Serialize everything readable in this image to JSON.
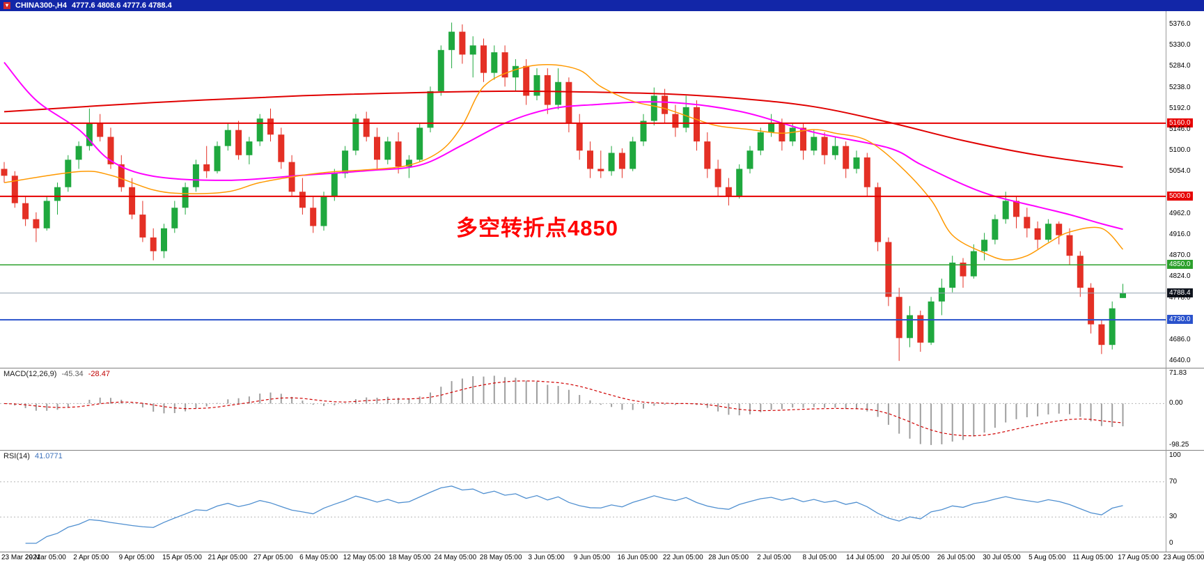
{
  "window": {
    "title_symbol": "CHINA300-,H4",
    "title_ohlc": "4777.6 4808.6 4777.6 4788.4",
    "titlebar_color": "#1226a8"
  },
  "colors": {
    "background": "#ffffff",
    "up": "#1fa83e",
    "down": "#e43025",
    "ma_slow": "#e00000",
    "ma_mid": "#ff00ff",
    "ma_fast": "#ff9900",
    "macd_hist": "#9e9e9e",
    "macd_signal": "#d00000",
    "rsi_line": "#4f8fd0",
    "level_dotted": "#b5b5b5",
    "current_line": "#90a0b0",
    "current_badge": "#10151f",
    "annotation": "#ff0000",
    "separator": "#808080"
  },
  "chart_data": [
    {
      "type": "candlestick",
      "symbol": "CHINA300-",
      "period": "H4",
      "title": "CHINA300-,H4",
      "current_ohlc": {
        "open": 4777.6,
        "high": 4808.6,
        "low": 4777.6,
        "close": 4788.4
      },
      "ylim": [
        4625,
        5405
      ],
      "y_ticks": [
        "5376.0",
        "5330.0",
        "5284.0",
        "5238.0",
        "5192.0",
        "5146.0",
        "5100.0",
        "5054.0",
        "4962.0",
        "4916.0",
        "4870.0",
        "4824.0",
        "4778.0",
        "4686.0",
        "4640.0"
      ],
      "x_labels": [
        "23 Mar 2021",
        "29 Mar 05:00",
        "2 Apr 05:00",
        "9 Apr 05:00",
        "15 Apr 05:00",
        "21 Apr 05:00",
        "27 Apr 05:00",
        "6 May 05:00",
        "12 May 05:00",
        "18 May 05:00",
        "24 May 05:00",
        "28 May 05:00",
        "3 Jun 05:00",
        "9 Jun 05:00",
        "16 Jun 05:00",
        "22 Jun 05:00",
        "28 Jun 05:00",
        "2 Jul 05:00",
        "8 Jul 05:00",
        "14 Jul 05:00",
        "20 Jul 05:00",
        "26 Jul 05:00",
        "30 Jul 05:00",
        "5 Aug 05:00",
        "11 Aug 05:00",
        "17 Aug 05:00",
        "23 Aug 05:00"
      ],
      "candles": [
        [
          5060,
          5075,
          5030,
          5045
        ],
        [
          5045,
          5055,
          4975,
          4985
        ],
        [
          4985,
          5000,
          4935,
          4950
        ],
        [
          4950,
          4965,
          4900,
          4930
        ],
        [
          4930,
          5000,
          4925,
          4990
        ],
        [
          4990,
          5030,
          4960,
          5020
        ],
        [
          5020,
          5090,
          5010,
          5080
        ],
        [
          5080,
          5120,
          5060,
          5110
        ],
        [
          5110,
          5192,
          5100,
          5160
        ],
        [
          5160,
          5180,
          5120,
          5130
        ],
        [
          5130,
          5150,
          5060,
          5070
        ],
        [
          5070,
          5090,
          5010,
          5020
        ],
        [
          5020,
          5040,
          4950,
          4960
        ],
        [
          4960,
          4990,
          4900,
          4910
        ],
        [
          4910,
          4930,
          4860,
          4880
        ],
        [
          4880,
          4940,
          4865,
          4930
        ],
        [
          4930,
          4990,
          4920,
          4975
        ],
        [
          4975,
          5030,
          4960,
          5020
        ],
        [
          5020,
          5080,
          5010,
          5070
        ],
        [
          5070,
          5110,
          5040,
          5055
        ],
        [
          5055,
          5120,
          5050,
          5110
        ],
        [
          5110,
          5160,
          5100,
          5145
        ],
        [
          5145,
          5165,
          5080,
          5090
        ],
        [
          5090,
          5130,
          5070,
          5120
        ],
        [
          5120,
          5180,
          5110,
          5170
        ],
        [
          5170,
          5192,
          5120,
          5135
        ],
        [
          5135,
          5150,
          5060,
          5075
        ],
        [
          5075,
          5090,
          5000,
          5010
        ],
        [
          5010,
          5040,
          4960,
          4975
        ],
        [
          4975,
          5000,
          4920,
          4935
        ],
        [
          4935,
          5010,
          4925,
          5000
        ],
        [
          5000,
          5060,
          4990,
          5050
        ],
        [
          5050,
          5110,
          5040,
          5100
        ],
        [
          5100,
          5180,
          5090,
          5170
        ],
        [
          5170,
          5185,
          5120,
          5130
        ],
        [
          5130,
          5150,
          5060,
          5080
        ],
        [
          5080,
          5130,
          5070,
          5120
        ],
        [
          5120,
          5140,
          5050,
          5065
        ],
        [
          5065,
          5090,
          5040,
          5080
        ],
        [
          5080,
          5160,
          5075,
          5150
        ],
        [
          5150,
          5240,
          5140,
          5230
        ],
        [
          5230,
          5330,
          5220,
          5320
        ],
        [
          5320,
          5380,
          5280,
          5360
        ],
        [
          5360,
          5376,
          5290,
          5310
        ],
        [
          5310,
          5350,
          5260,
          5330
        ],
        [
          5330,
          5345,
          5250,
          5270
        ],
        [
          5270,
          5330,
          5255,
          5315
        ],
        [
          5315,
          5330,
          5240,
          5260
        ],
        [
          5260,
          5300,
          5230,
          5285
        ],
        [
          5285,
          5300,
          5200,
          5220
        ],
        [
          5220,
          5280,
          5210,
          5265
        ],
        [
          5265,
          5280,
          5180,
          5200
        ],
        [
          5200,
          5280,
          5190,
          5250
        ],
        [
          5250,
          5260,
          5140,
          5160
        ],
        [
          5160,
          5180,
          5080,
          5100
        ],
        [
          5100,
          5120,
          5040,
          5060
        ],
        [
          5060,
          5100,
          5040,
          5055
        ],
        [
          5055,
          5110,
          5045,
          5095
        ],
        [
          5095,
          5105,
          5040,
          5060
        ],
        [
          5060,
          5130,
          5055,
          5120
        ],
        [
          5120,
          5180,
          5110,
          5165
        ],
        [
          5165,
          5238,
          5155,
          5220
        ],
        [
          5220,
          5235,
          5160,
          5180
        ],
        [
          5180,
          5200,
          5130,
          5150
        ],
        [
          5150,
          5220,
          5140,
          5195
        ],
        [
          5195,
          5210,
          5100,
          5120
        ],
        [
          5120,
          5140,
          5040,
          5060
        ],
        [
          5060,
          5080,
          5000,
          5020
        ],
        [
          5020,
          5040,
          4980,
          5000
        ],
        [
          5000,
          5070,
          4995,
          5060
        ],
        [
          5060,
          5110,
          5050,
          5100
        ],
        [
          5100,
          5150,
          5090,
          5140
        ],
        [
          5140,
          5180,
          5130,
          5160
        ],
        [
          5160,
          5170,
          5100,
          5120
        ],
        [
          5120,
          5160,
          5110,
          5150
        ],
        [
          5150,
          5160,
          5080,
          5100
        ],
        [
          5100,
          5145,
          5090,
          5130
        ],
        [
          5130,
          5140,
          5070,
          5090
        ],
        [
          5090,
          5130,
          5080,
          5110
        ],
        [
          5110,
          5120,
          5040,
          5060
        ],
        [
          5060,
          5100,
          5050,
          5085
        ],
        [
          5085,
          5095,
          5000,
          5020
        ],
        [
          5020,
          5030,
          4880,
          4900
        ],
        [
          4900,
          4910,
          4760,
          4780
        ],
        [
          4780,
          4800,
          4640,
          4690
        ],
        [
          4690,
          4760,
          4670,
          4740
        ],
        [
          4740,
          4750,
          4660,
          4680
        ],
        [
          4680,
          4780,
          4675,
          4770
        ],
        [
          4770,
          4820,
          4740,
          4800
        ],
        [
          4800,
          4870,
          4790,
          4855
        ],
        [
          4855,
          4865,
          4800,
          4825
        ],
        [
          4825,
          4895,
          4820,
          4880
        ],
        [
          4880,
          4920,
          4860,
          4905
        ],
        [
          4905,
          4960,
          4895,
          4950
        ],
        [
          4950,
          5010,
          4940,
          4990
        ],
        [
          4990,
          5000,
          4930,
          4955
        ],
        [
          4955,
          4975,
          4910,
          4930
        ],
        [
          4930,
          4945,
          4885,
          4905
        ],
        [
          4905,
          4950,
          4900,
          4940
        ],
        [
          4940,
          4945,
          4895,
          4915
        ],
        [
          4915,
          4930,
          4850,
          4870
        ],
        [
          4870,
          4880,
          4780,
          4800
        ],
        [
          4800,
          4810,
          4700,
          4720
        ],
        [
          4720,
          4730,
          4655,
          4675
        ],
        [
          4675,
          4770,
          4665,
          4755
        ],
        [
          4777.6,
          4808.6,
          4777.6,
          4788.4
        ]
      ],
      "moving_averages": [
        {
          "name": "slow-red",
          "color": "#e00000",
          "width": 2,
          "points": [
            [
              0,
              5185
            ],
            [
              14,
              5205
            ],
            [
              28,
              5220
            ],
            [
              41,
              5228
            ],
            [
              48,
              5230
            ],
            [
              55,
              5228
            ],
            [
              62,
              5224
            ],
            [
              69,
              5214
            ],
            [
              76,
              5196
            ],
            [
              83,
              5162
            ],
            [
              90,
              5122
            ],
            [
              97,
              5090
            ],
            [
              105,
              5064
            ]
          ]
        },
        {
          "name": "mid-magenta",
          "color": "#ff00ff",
          "width": 2,
          "points": [
            [
              0,
              5293
            ],
            [
              3,
              5210
            ],
            [
              7,
              5146
            ],
            [
              10,
              5078
            ],
            [
              14,
              5044
            ],
            [
              21,
              5035
            ],
            [
              28,
              5046
            ],
            [
              34,
              5056
            ],
            [
              39,
              5068
            ],
            [
              43,
              5112
            ],
            [
              47,
              5160
            ],
            [
              51,
              5190
            ],
            [
              55,
              5200
            ],
            [
              62,
              5206
            ],
            [
              69,
              5186
            ],
            [
              76,
              5140
            ],
            [
              83,
              5106
            ],
            [
              86,
              5070
            ],
            [
              90,
              5026
            ],
            [
              93,
              5000
            ],
            [
              97,
              4977
            ],
            [
              100,
              4960
            ],
            [
              103,
              4940
            ],
            [
              105,
              4928
            ]
          ]
        },
        {
          "name": "fast-orange",
          "color": "#ff9900",
          "width": 1.5,
          "points": [
            [
              0,
              5030
            ],
            [
              7,
              5054
            ],
            [
              10,
              5046
            ],
            [
              14,
              5014
            ],
            [
              17,
              5006
            ],
            [
              21,
              5010
            ],
            [
              24,
              5030
            ],
            [
              28,
              5046
            ],
            [
              31,
              5054
            ],
            [
              34,
              5058
            ],
            [
              38,
              5068
            ],
            [
              41,
              5100
            ],
            [
              43,
              5155
            ],
            [
              45,
              5240
            ],
            [
              48,
              5277
            ],
            [
              51,
              5288
            ],
            [
              54,
              5276
            ],
            [
              56,
              5240
            ],
            [
              59,
              5208
            ],
            [
              62,
              5192
            ],
            [
              65,
              5168
            ],
            [
              67,
              5154
            ],
            [
              70,
              5146
            ],
            [
              73,
              5138
            ],
            [
              76,
              5146
            ],
            [
              78,
              5138
            ],
            [
              81,
              5122
            ],
            [
              84,
              5068
            ],
            [
              87,
              4992
            ],
            [
              89,
              4915
            ],
            [
              92,
              4876
            ],
            [
              94,
              4861
            ],
            [
              96,
              4870
            ],
            [
              98,
              4898
            ],
            [
              100,
              4922
            ],
            [
              103,
              4930
            ],
            [
              105,
              4884
            ]
          ]
        }
      ],
      "horizontal_lines": [
        {
          "price": 5160.0,
          "label": "5160.0",
          "color": "#e60000",
          "width": 2
        },
        {
          "price": 5000.0,
          "label": "5000.0",
          "color": "#e60000",
          "width": 2
        },
        {
          "price": 4850.0,
          "label": "4850.0",
          "color": "#2ca02c",
          "width": 1.5
        },
        {
          "price": 4730.0,
          "label": "4730.0",
          "color": "#2a52cc",
          "width": 2
        }
      ],
      "current_price": {
        "price": 4788.4,
        "label": "4788.4"
      },
      "annotation": {
        "text": "多空转折点4850",
        "value": 4850
      }
    },
    {
      "type": "macd",
      "label": "MACD(12,26,9)",
      "params": {
        "fast": 12,
        "slow": 26,
        "signal": 9
      },
      "current": {
        "macd": -45.34,
        "signal": -28.47
      },
      "y_ticks": [
        "71.83",
        "0.00",
        "-98.25"
      ],
      "ylim": [
        -110,
        85
      ]
    },
    {
      "type": "rsi",
      "label": "RSI(14)",
      "period": 14,
      "current": 41.0771,
      "levels": [
        70,
        30
      ],
      "y_ticks": [
        "100",
        "70",
        "30",
        "0"
      ],
      "ylim": [
        0,
        100
      ]
    }
  ]
}
